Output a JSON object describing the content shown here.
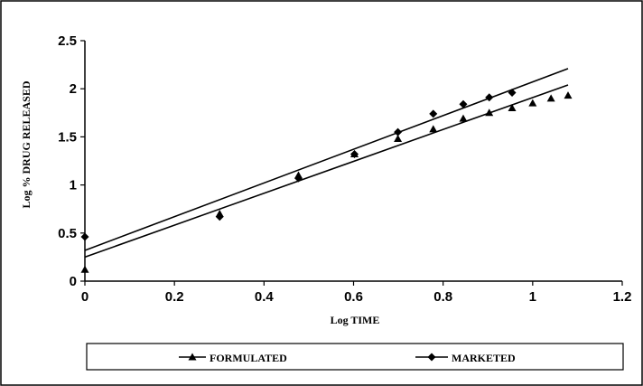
{
  "chart_data": {
    "type": "scatter",
    "title": "",
    "xlabel": "Log TIME",
    "ylabel": "Log % DRUG RELEASED",
    "xlim": [
      0,
      1.2
    ],
    "ylim": [
      0,
      2.5
    ],
    "x_ticks": [
      "0",
      "0.2",
      "0.4",
      "0.6",
      "0.8",
      "1",
      "1.2"
    ],
    "y_ticks": [
      "0",
      "0.5",
      "1",
      "1.5",
      "2",
      "2.5"
    ],
    "grid": false,
    "legend_position": "bottom",
    "series": [
      {
        "name": "FORMULATED",
        "marker": "triangle",
        "color": "#000000",
        "x": [
          0,
          0.301,
          0.477,
          0.602,
          0.699,
          0.778,
          0.845,
          0.903,
          0.954,
          1.0,
          1.041,
          1.079
        ],
        "y": [
          0.12,
          0.7,
          1.1,
          1.32,
          1.48,
          1.58,
          1.69,
          1.75,
          1.8,
          1.85,
          1.9,
          1.93
        ],
        "trendline": {
          "x": [
            0,
            1.079
          ],
          "y": [
            0.25,
            2.04
          ]
        }
      },
      {
        "name": "MARKETED",
        "marker": "diamond",
        "color": "#000000",
        "x": [
          0,
          0.301,
          0.477,
          0.602,
          0.699,
          0.778,
          0.845,
          0.903,
          0.954
        ],
        "y": [
          0.46,
          0.67,
          1.07,
          1.32,
          1.55,
          1.74,
          1.84,
          1.91,
          1.96
        ],
        "trendline": {
          "x": [
            0,
            1.079
          ],
          "y": [
            0.32,
            2.21
          ]
        }
      }
    ]
  }
}
